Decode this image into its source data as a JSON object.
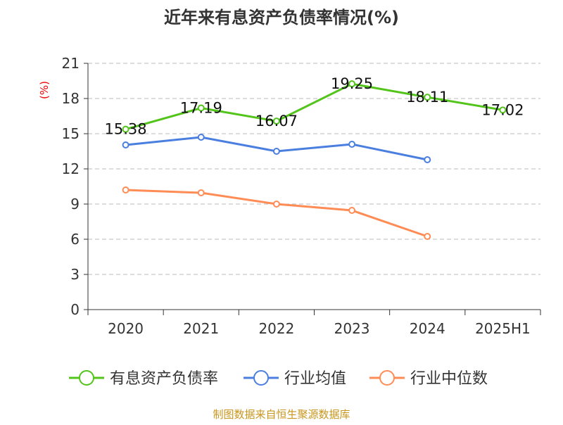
{
  "chart_data": {
    "type": "line",
    "title": "近年来有息资产负债率情况(%)",
    "ylabel": "(%)",
    "categories": [
      "2020",
      "2021",
      "2022",
      "2023",
      "2024",
      "2025H1"
    ],
    "ylim": [
      0,
      21
    ],
    "yticks": [
      0,
      3,
      6,
      9,
      12,
      15,
      18,
      21
    ],
    "grid": true,
    "legend_position": "bottom",
    "series": [
      {
        "name": "有息资产负债率",
        "color": "#52c41a",
        "values": [
          15.38,
          17.19,
          16.07,
          19.25,
          18.11,
          17.02
        ],
        "labels": [
          "15.38",
          "17.19",
          "16.07",
          "19.25",
          "18.11",
          "17.02"
        ]
      },
      {
        "name": "行业均值",
        "color": "#4a7fe0",
        "values": [
          14.04,
          14.7,
          13.5,
          14.1,
          12.78,
          null
        ]
      },
      {
        "name": "行业中位数",
        "color": "#ff8c55",
        "values": [
          10.2,
          9.96,
          9.0,
          8.46,
          6.24,
          null
        ]
      }
    ],
    "source": "制图数据来自恒生聚源数据库"
  }
}
